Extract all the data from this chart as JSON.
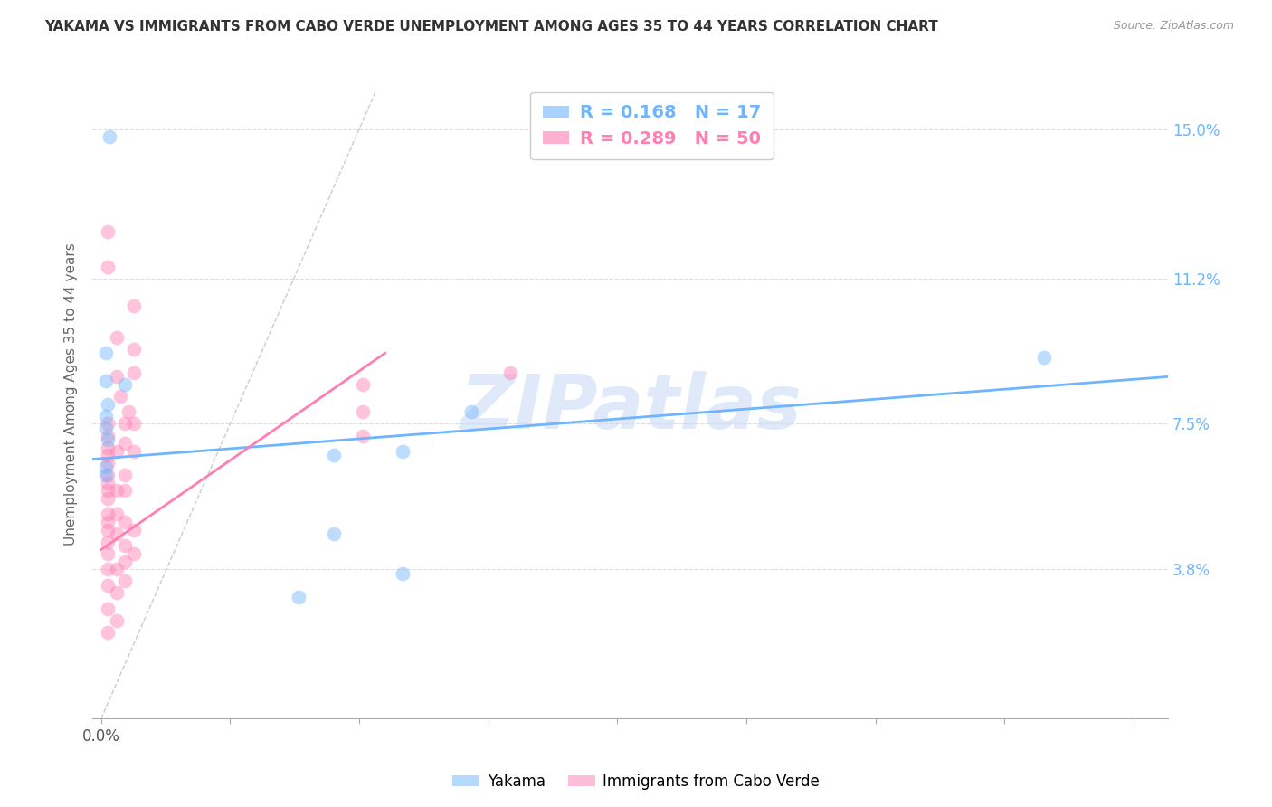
{
  "title": "YAKAMA VS IMMIGRANTS FROM CABO VERDE UNEMPLOYMENT AMONG AGES 35 TO 44 YEARS CORRELATION CHART",
  "source": "Source: ZipAtlas.com",
  "ylabel": "Unemployment Among Ages 35 to 44 years",
  "ylabel_ticks": [
    "3.8%",
    "7.5%",
    "11.2%",
    "15.0%"
  ],
  "ylabel_vals": [
    0.038,
    0.075,
    0.112,
    0.15
  ],
  "ylim": [
    0.0,
    0.165
  ],
  "xlim": [
    -0.005,
    0.62
  ],
  "xtick_vals": [
    0.0,
    0.075,
    0.15,
    0.225,
    0.3,
    0.375,
    0.45,
    0.525,
    0.6
  ],
  "xtick_labels_show": {
    "0.0": "0.0%"
  },
  "watermark": "ZIPatlas",
  "legend_r": [
    {
      "label": "R = 0.168",
      "n_label": "N = 17",
      "color": "#6eb5ff"
    },
    {
      "label": "R = 0.289",
      "n_label": "N = 50",
      "color": "#ff7eb3"
    }
  ],
  "legend_labels": [
    "Yakama",
    "Immigrants from Cabo Verde"
  ],
  "blue_color": "#6eb5ff",
  "pink_color": "#ff7eb3",
  "blue_scatter": [
    [
      0.005,
      0.148
    ],
    [
      0.003,
      0.093
    ],
    [
      0.003,
      0.086
    ],
    [
      0.014,
      0.085
    ],
    [
      0.004,
      0.08
    ],
    [
      0.003,
      0.077
    ],
    [
      0.003,
      0.074
    ],
    [
      0.004,
      0.071
    ],
    [
      0.003,
      0.064
    ],
    [
      0.003,
      0.062
    ],
    [
      0.215,
      0.078
    ],
    [
      0.135,
      0.067
    ],
    [
      0.135,
      0.047
    ],
    [
      0.175,
      0.068
    ],
    [
      0.175,
      0.037
    ],
    [
      0.115,
      0.031
    ],
    [
      0.548,
      0.092
    ]
  ],
  "pink_scatter": [
    [
      0.004,
      0.124
    ],
    [
      0.004,
      0.115
    ],
    [
      0.009,
      0.097
    ],
    [
      0.009,
      0.087
    ],
    [
      0.011,
      0.082
    ],
    [
      0.016,
      0.078
    ],
    [
      0.004,
      0.075
    ],
    [
      0.004,
      0.072
    ],
    [
      0.004,
      0.069
    ],
    [
      0.004,
      0.067
    ],
    [
      0.004,
      0.065
    ],
    [
      0.004,
      0.062
    ],
    [
      0.004,
      0.06
    ],
    [
      0.004,
      0.058
    ],
    [
      0.004,
      0.056
    ],
    [
      0.004,
      0.052
    ],
    [
      0.004,
      0.05
    ],
    [
      0.004,
      0.048
    ],
    [
      0.004,
      0.045
    ],
    [
      0.004,
      0.042
    ],
    [
      0.004,
      0.038
    ],
    [
      0.004,
      0.034
    ],
    [
      0.004,
      0.028
    ],
    [
      0.004,
      0.022
    ],
    [
      0.009,
      0.068
    ],
    [
      0.009,
      0.058
    ],
    [
      0.009,
      0.052
    ],
    [
      0.009,
      0.047
    ],
    [
      0.009,
      0.038
    ],
    [
      0.009,
      0.032
    ],
    [
      0.009,
      0.025
    ],
    [
      0.014,
      0.075
    ],
    [
      0.014,
      0.07
    ],
    [
      0.014,
      0.062
    ],
    [
      0.014,
      0.058
    ],
    [
      0.014,
      0.05
    ],
    [
      0.014,
      0.044
    ],
    [
      0.014,
      0.04
    ],
    [
      0.014,
      0.035
    ],
    [
      0.019,
      0.105
    ],
    [
      0.019,
      0.094
    ],
    [
      0.019,
      0.088
    ],
    [
      0.019,
      0.075
    ],
    [
      0.019,
      0.068
    ],
    [
      0.019,
      0.048
    ],
    [
      0.019,
      0.042
    ],
    [
      0.152,
      0.085
    ],
    [
      0.152,
      0.078
    ],
    [
      0.152,
      0.072
    ],
    [
      0.238,
      0.088
    ]
  ],
  "blue_line_x": [
    -0.005,
    0.62
  ],
  "blue_line_y": [
    0.066,
    0.087
  ],
  "pink_line_x": [
    0.0,
    0.165
  ],
  "pink_line_y": [
    0.043,
    0.093
  ],
  "diag_line_x": [
    0.0,
    0.16
  ],
  "diag_line_y": [
    0.0,
    0.16
  ]
}
